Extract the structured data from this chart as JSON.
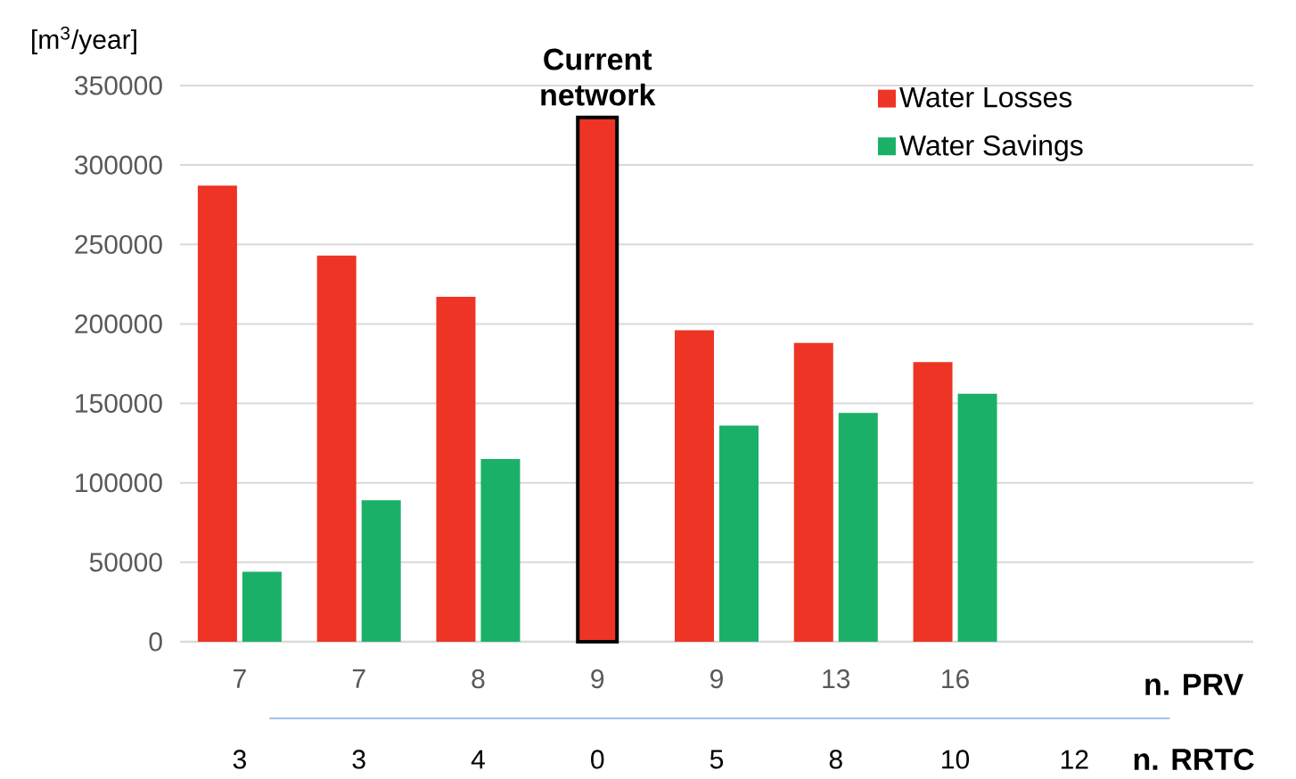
{
  "chart_data": {
    "type": "bar",
    "ylabel": "[m$^{3}$/year]",
    "xlabel": "n. PRV",
    "categories": [
      "7",
      "7",
      "8",
      "9",
      "9",
      "13",
      "16",
      null
    ],
    "series": [
      {
        "name": "Water Losses",
        "color": "#ee3424",
        "values": [
          287000,
          243000,
          217000,
          330000,
          196000,
          188000,
          176000,
          null
        ]
      },
      {
        "name": "Water Savings",
        "color": "#1bb068",
        "values": [
          44000,
          89000,
          115000,
          null,
          136000,
          144000,
          156000,
          null
        ]
      }
    ],
    "ylim": [
      0,
      350000
    ],
    "yticks": [
      0,
      50000,
      100000,
      150000,
      200000,
      250000,
      300000,
      350000
    ],
    "grid": "y",
    "legend": "top right",
    "annotations": [
      {
        "text": "Current network",
        "x": "9",
        "y": 330000
      },
      "3",
      "3",
      "4",
      "0",
      "5",
      "8",
      "10",
      "12",
      "n. RRTC"
    ]
  }
}
